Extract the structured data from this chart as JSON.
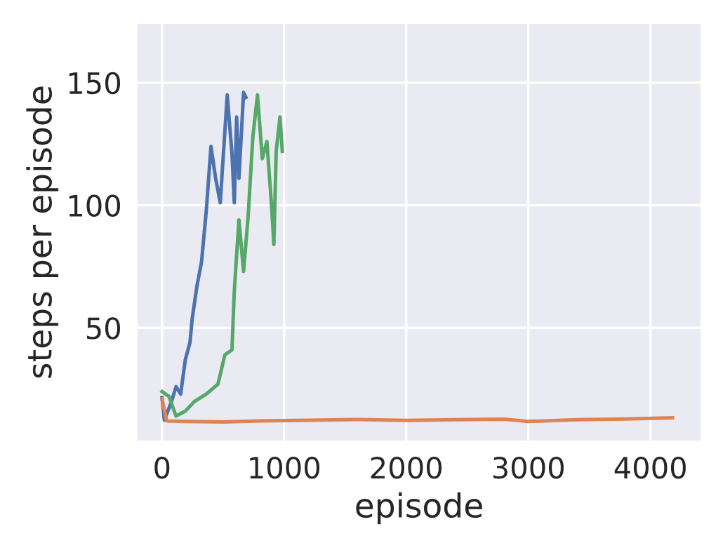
{
  "chart_data": {
    "type": "line",
    "xlabel": "episode",
    "ylabel": "steps per episode",
    "xlim": [
      -200,
      4410
    ],
    "ylim": [
      4,
      174
    ],
    "xticks": [
      0,
      1000,
      2000,
      3000,
      4000
    ],
    "yticks": [
      50,
      100,
      150
    ],
    "grid": true,
    "series": [
      {
        "color": "#4c72b0",
        "x": [
          0,
          19,
          76,
          115,
          153,
          191,
          229,
          248,
          286,
          324,
          363,
          401,
          439,
          477,
          534,
          573,
          592,
          611,
          630,
          668,
          687
        ],
        "values": [
          21.5,
          12.4,
          19.6,
          26,
          23,
          37,
          44,
          54,
          67,
          77,
          98,
          124,
          111,
          101,
          145,
          121,
          101,
          136,
          111,
          146,
          144
        ]
      },
      {
        "color": "#dd8452",
        "x": [
          0,
          38,
          200,
          500,
          800,
          1200,
          1600,
          2000,
          2400,
          2800,
          3000,
          3400,
          3800,
          4180
        ],
        "values": [
          21,
          12,
          11.8,
          11.6,
          12,
          12.3,
          12.6,
          12.2,
          12.5,
          12.7,
          11.8,
          12.5,
          12.8,
          13.3
        ]
      },
      {
        "color": "#55a868",
        "x": [
          0,
          57,
          115,
          191,
          267,
          363,
          458,
          515,
          573,
          592,
          630,
          668,
          706,
          744,
          782,
          821,
          859,
          897,
          916,
          935,
          966,
          985
        ],
        "values": [
          24,
          22,
          14,
          16,
          20,
          23,
          27,
          39,
          41,
          65,
          94,
          73,
          96,
          128,
          145,
          119,
          126,
          100,
          84,
          122,
          136,
          122
        ]
      }
    ]
  }
}
